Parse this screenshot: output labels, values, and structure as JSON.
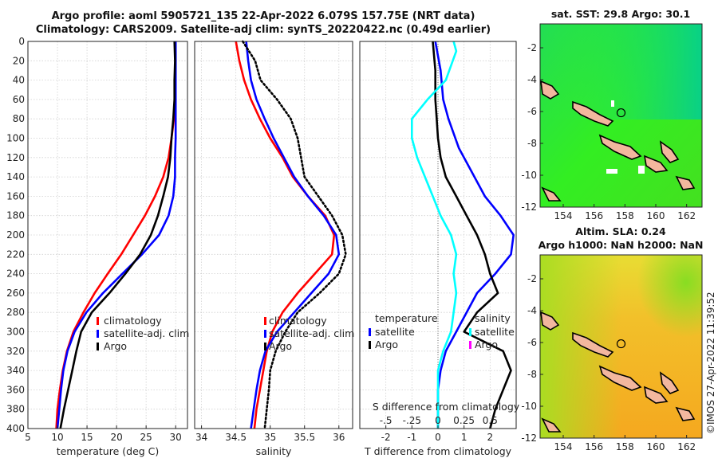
{
  "header": {
    "line1": "Argo profile: aoml 5905721_135 22-Apr-2022 6.079S 157.75E (NRT data)",
    "line2": "Climatology: CARS2009. Satellite-adj clim: synTS_20220422.nc (0.49d earlier)"
  },
  "timestamp": "©IMOS 27-Apr-2022 11:39:52",
  "colors": {
    "climatology": "#ff0000",
    "satellite": "#0000ff",
    "argo": "#000000",
    "sal_diff": "#00ffff",
    "magenta": "#ff00ff",
    "land": "#f3b79e"
  },
  "chart_data": [
    {
      "type": "line",
      "panel": "temperature",
      "xlabel": "temperature (deg C)",
      "ylabel": "",
      "xlim": [
        5,
        32
      ],
      "ylim": [
        400,
        0
      ],
      "xticks": [
        5,
        10,
        15,
        20,
        25,
        30
      ],
      "yticks": [
        0,
        20,
        40,
        60,
        80,
        100,
        120,
        140,
        160,
        180,
        200,
        220,
        240,
        260,
        280,
        300,
        320,
        340,
        360,
        380,
        400
      ],
      "grid": true,
      "legend_position": "lower-center",
      "legend": [
        "climatology",
        "satellite-adj. clim",
        "Argo"
      ],
      "series": [
        {
          "name": "climatology",
          "color": "#ff0000",
          "points": [
            [
              30.0,
              0
            ],
            [
              30.0,
              20
            ],
            [
              30.0,
              40
            ],
            [
              29.9,
              60
            ],
            [
              29.7,
              80
            ],
            [
              29.3,
              100
            ],
            [
              28.8,
              120
            ],
            [
              27.9,
              140
            ],
            [
              26.5,
              160
            ],
            [
              24.8,
              180
            ],
            [
              22.8,
              200
            ],
            [
              20.8,
              220
            ],
            [
              18.5,
              240
            ],
            [
              16.3,
              260
            ],
            [
              14.4,
              280
            ],
            [
              12.7,
              300
            ],
            [
              11.6,
              320
            ],
            [
              10.9,
              340
            ],
            [
              10.4,
              360
            ],
            [
              10.0,
              380
            ],
            [
              9.8,
              400
            ]
          ]
        },
        {
          "name": "satellite-adj. clim",
          "color": "#0000ff",
          "points": [
            [
              30.0,
              0
            ],
            [
              30.0,
              20
            ],
            [
              30.0,
              40
            ],
            [
              30.0,
              60
            ],
            [
              30.0,
              80
            ],
            [
              30.0,
              100
            ],
            [
              29.9,
              120
            ],
            [
              29.9,
              140
            ],
            [
              29.6,
              160
            ],
            [
              28.8,
              180
            ],
            [
              27.2,
              200
            ],
            [
              24.3,
              220
            ],
            [
              21.0,
              240
            ],
            [
              17.7,
              260
            ],
            [
              14.9,
              280
            ],
            [
              12.9,
              300
            ],
            [
              11.7,
              320
            ],
            [
              11.0,
              340
            ],
            [
              10.6,
              360
            ],
            [
              10.3,
              380
            ],
            [
              10.0,
              400
            ]
          ]
        },
        {
          "name": "Argo",
          "color": "#000000",
          "points": [
            [
              29.8,
              0
            ],
            [
              29.9,
              20
            ],
            [
              29.8,
              40
            ],
            [
              29.8,
              60
            ],
            [
              29.6,
              80
            ],
            [
              29.3,
              100
            ],
            [
              29.1,
              120
            ],
            [
              28.7,
              140
            ],
            [
              27.9,
              160
            ],
            [
              27.0,
              180
            ],
            [
              25.8,
              200
            ],
            [
              24.0,
              220
            ],
            [
              21.5,
              240
            ],
            [
              18.8,
              260
            ],
            [
              15.8,
              280
            ],
            [
              14.0,
              300
            ],
            [
              13.2,
              320
            ],
            [
              12.5,
              340
            ],
            [
              11.8,
              360
            ],
            [
              11.1,
              380
            ],
            [
              10.5,
              400
            ]
          ]
        }
      ]
    },
    {
      "type": "line",
      "panel": "salinity",
      "xlabel": "salinity",
      "ylabel": "",
      "xlim": [
        33.9,
        36.2
      ],
      "ylim": [
        400,
        0
      ],
      "xticks": [
        34,
        34.5,
        35,
        35.5,
        36
      ],
      "grid": true,
      "legend_position": "lower-right",
      "legend": [
        "climatology",
        "satellite-adj. clim",
        "Argo"
      ],
      "series": [
        {
          "name": "climatology",
          "color": "#ff0000",
          "points": [
            [
              34.5,
              0
            ],
            [
              34.55,
              20
            ],
            [
              34.62,
              40
            ],
            [
              34.72,
              60
            ],
            [
              34.85,
              80
            ],
            [
              35.0,
              100
            ],
            [
              35.18,
              120
            ],
            [
              35.33,
              140
            ],
            [
              35.55,
              160
            ],
            [
              35.8,
              180
            ],
            [
              35.93,
              200
            ],
            [
              35.9,
              220
            ],
            [
              35.65,
              240
            ],
            [
              35.4,
              260
            ],
            [
              35.18,
              280
            ],
            [
              35.03,
              300
            ],
            [
              34.95,
              320
            ],
            [
              34.9,
              340
            ],
            [
              34.85,
              360
            ],
            [
              34.8,
              380
            ],
            [
              34.77,
              400
            ]
          ]
        },
        {
          "name": "satellite-adj. clim",
          "color": "#0000ff",
          "points": [
            [
              34.65,
              0
            ],
            [
              34.68,
              20
            ],
            [
              34.72,
              40
            ],
            [
              34.8,
              60
            ],
            [
              34.92,
              80
            ],
            [
              35.05,
              100
            ],
            [
              35.2,
              120
            ],
            [
              35.35,
              140
            ],
            [
              35.55,
              160
            ],
            [
              35.78,
              180
            ],
            [
              35.96,
              200
            ],
            [
              36.0,
              220
            ],
            [
              35.85,
              240
            ],
            [
              35.6,
              260
            ],
            [
              35.35,
              280
            ],
            [
              35.1,
              300
            ],
            [
              34.93,
              320
            ],
            [
              34.85,
              340
            ],
            [
              34.8,
              360
            ],
            [
              34.76,
              380
            ],
            [
              34.72,
              400
            ]
          ]
        },
        {
          "name": "Argo",
          "color": "#000000",
          "style": "dotted",
          "points": [
            [
              34.6,
              0
            ],
            [
              34.78,
              20
            ],
            [
              34.86,
              40
            ],
            [
              35.1,
              60
            ],
            [
              35.3,
              80
            ],
            [
              35.4,
              100
            ],
            [
              35.45,
              120
            ],
            [
              35.5,
              140
            ],
            [
              35.7,
              160
            ],
            [
              35.9,
              180
            ],
            [
              36.05,
              200
            ],
            [
              36.1,
              220
            ],
            [
              36.0,
              240
            ],
            [
              35.72,
              260
            ],
            [
              35.4,
              280
            ],
            [
              35.22,
              300
            ],
            [
              35.08,
              320
            ],
            [
              35.0,
              340
            ],
            [
              34.98,
              360
            ],
            [
              34.95,
              380
            ],
            [
              34.92,
              400
            ]
          ]
        }
      ]
    },
    {
      "type": "line",
      "panel": "difference",
      "xlabel": "T difference from climatology",
      "xlabel_top": "S difference from climatology",
      "ylabel": "",
      "xlim": [
        -3,
        3
      ],
      "ylim": [
        400,
        0
      ],
      "xticks": [
        -2,
        -1,
        0,
        1,
        2
      ],
      "s_ticks": [
        -0.5,
        -0.25,
        0,
        0.25,
        0.5
      ],
      "legend_left_title": "temperature",
      "legend_right_title": "salinity",
      "legend": [
        "satellite",
        "Argo",
        "satellite",
        "Argo"
      ],
      "series": [
        {
          "name": "T satellite",
          "color": "#0000ff",
          "points": [
            [
              -0.1,
              0
            ],
            [
              0.1,
              30
            ],
            [
              0.2,
              60
            ],
            [
              0.4,
              80
            ],
            [
              0.8,
              110
            ],
            [
              1.2,
              130
            ],
            [
              1.8,
              160
            ],
            [
              2.4,
              180
            ],
            [
              2.9,
              200
            ],
            [
              2.8,
              220
            ],
            [
              2.2,
              240
            ],
            [
              1.5,
              260
            ],
            [
              1.1,
              280
            ],
            [
              0.7,
              300
            ],
            [
              0.3,
              320
            ],
            [
              0.1,
              340
            ],
            [
              0.0,
              360
            ],
            [
              0.0,
              380
            ],
            [
              0.0,
              400
            ]
          ]
        },
        {
          "name": "T Argo",
          "color": "#000000",
          "points": [
            [
              -0.2,
              0
            ],
            [
              -0.1,
              30
            ],
            [
              -0.1,
              60
            ],
            [
              -0.05,
              80
            ],
            [
              0.0,
              100
            ],
            [
              0.1,
              120
            ],
            [
              0.3,
              140
            ],
            [
              0.7,
              160
            ],
            [
              1.1,
              180
            ],
            [
              1.5,
              200
            ],
            [
              1.8,
              220
            ],
            [
              2.0,
              240
            ],
            [
              2.3,
              260
            ],
            [
              1.5,
              280
            ],
            [
              1.0,
              300
            ],
            [
              2.5,
              320
            ],
            [
              2.8,
              340
            ],
            [
              2.5,
              360
            ],
            [
              2.2,
              380
            ],
            [
              2.0,
              400
            ]
          ]
        },
        {
          "name": "S satellite",
          "color": "#00ffff",
          "points": [
            [
              0.6,
              0
            ],
            [
              0.7,
              10
            ],
            [
              0.3,
              40
            ],
            [
              -0.4,
              60
            ],
            [
              -1.0,
              80
            ],
            [
              -1.0,
              100
            ],
            [
              -0.8,
              120
            ],
            [
              -0.5,
              140
            ],
            [
              -0.2,
              160
            ],
            [
              0.1,
              180
            ],
            [
              0.5,
              200
            ],
            [
              0.7,
              220
            ],
            [
              0.6,
              240
            ],
            [
              0.7,
              260
            ],
            [
              0.6,
              280
            ],
            [
              0.5,
              300
            ],
            [
              0.2,
              320
            ],
            [
              0.0,
              340
            ],
            [
              0.0,
              360
            ],
            [
              0.0,
              380
            ],
            [
              0.0,
              400
            ]
          ]
        }
      ]
    },
    {
      "type": "heatmap",
      "panel": "sst_map",
      "title": "sat. SST: 29.8 Argo: 30.1",
      "xlim": [
        152.5,
        163
      ],
      "ylim": [
        -12,
        -0.5
      ],
      "xticks": [
        154,
        156,
        158,
        160,
        162
      ],
      "yticks": [
        -2,
        -4,
        -6,
        -8,
        -10,
        -12
      ],
      "profile_location": [
        157.75,
        -6.079
      ]
    },
    {
      "type": "heatmap",
      "panel": "sla_map",
      "title_line1": "Altim. SLA: 0.24",
      "title_line2": "Argo h1000: NaN h2000: NaN",
      "xlim": [
        152.5,
        163
      ],
      "ylim": [
        -12,
        -0.5
      ],
      "xticks": [
        154,
        156,
        158,
        160,
        162
      ],
      "yticks": [
        -2,
        -4,
        -6,
        -8,
        -10,
        -12
      ],
      "profile_location": [
        157.75,
        -6.079
      ]
    }
  ]
}
